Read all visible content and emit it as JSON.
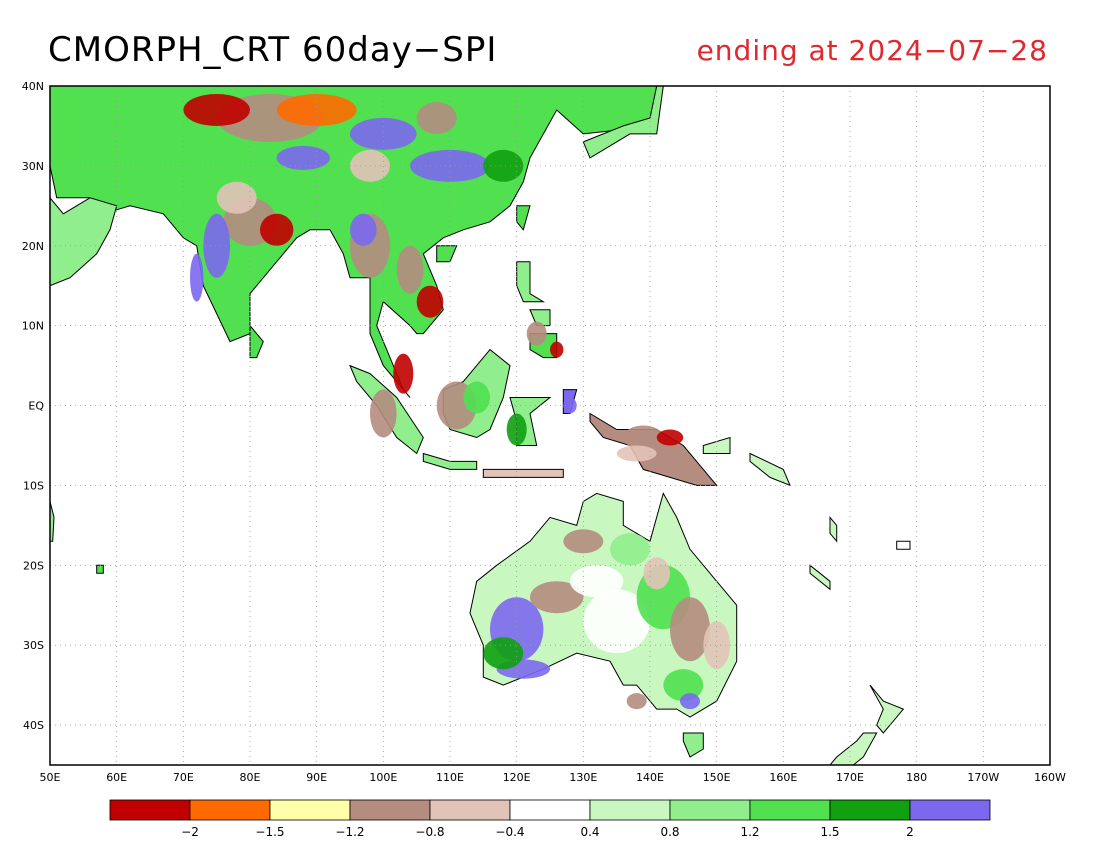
{
  "title": "CMORPH_CRT 60day−SPI",
  "subtitle": "ending at 2024−07−28",
  "map": {
    "lon_range": [
      50,
      200
    ],
    "lat_range": [
      -45,
      40
    ],
    "lat_labels": [
      "40N",
      "30N",
      "20N",
      "10N",
      "EQ",
      "10S",
      "20S",
      "30S",
      "40S"
    ],
    "lon_labels": [
      "50E",
      "60E",
      "70E",
      "80E",
      "90E",
      "100E",
      "110E",
      "120E",
      "130E",
      "140E",
      "150E",
      "160E",
      "170E",
      "180",
      "170W",
      "160W"
    ],
    "grid": "dotted",
    "colors": {
      "ocean": "#ffffff",
      "coast": "#000000"
    }
  },
  "legend": {
    "colors": [
      "#c00000",
      "#ff6a00",
      "#ffffaa",
      "#b48c80",
      "#e2c3b8",
      "#ffffff",
      "#c8f8c0",
      "#90ee8c",
      "#50e050",
      "#10a010",
      "#7b68ee"
    ],
    "labels": [
      "−2",
      "−1.5",
      "−1.2",
      "−0.8",
      "−0.4",
      "0.4",
      "0.8",
      "1.2",
      "1.5",
      "2"
    ]
  }
}
